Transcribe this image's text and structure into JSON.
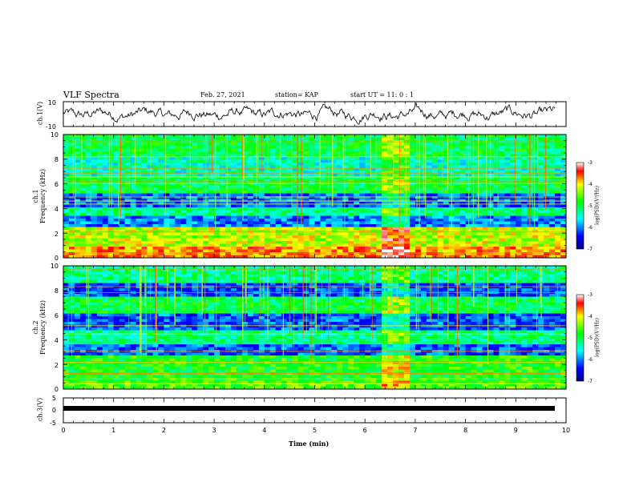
{
  "header": {
    "title": "VLF Spectra",
    "date": "Feb. 27, 2021",
    "station": "station= KAP",
    "start_ut": "start UT =  11: 0  : 1"
  },
  "chart_data": [
    {
      "id": "ch1-waveform",
      "type": "line",
      "ylabel": "ch.1(V)",
      "ylim": [
        -10,
        10
      ],
      "yticks": [
        "10",
        "-10"
      ],
      "xlim": [
        0,
        10
      ],
      "series": [
        {
          "values_desc": "noisy waveform around 0 V, amplitude ~5 V"
        }
      ]
    },
    {
      "id": "ch1-spectrogram",
      "type": "heatmap",
      "ylabel_line1": "ch.1",
      "ylabel_line2": "Frequency (kHz)",
      "ylim": [
        0,
        10
      ],
      "yticks": [
        "0",
        "2",
        "4",
        "6",
        "8",
        "10"
      ],
      "xlim": [
        0,
        10
      ],
      "colorbar": {
        "label": "log(PSD)(V²/Hz)",
        "ticks": [
          "-3",
          "-4",
          "-5",
          "-6",
          "-7"
        ],
        "range": [
          -7,
          -3
        ]
      }
    },
    {
      "id": "ch2-spectrogram",
      "type": "heatmap",
      "ylabel_line1": "ch.2",
      "ylabel_line2": "Frequency (kHz)",
      "ylim": [
        0,
        10
      ],
      "yticks": [
        "0",
        "2",
        "4",
        "6",
        "8",
        "10"
      ],
      "xlim": [
        0,
        10
      ],
      "colorbar": {
        "label": "log(PSD)(V²/Hz)",
        "ticks": [
          "-3",
          "-4",
          "-5",
          "-6",
          "-7"
        ],
        "range": [
          -7,
          -3
        ]
      }
    },
    {
      "id": "ch3-waveform",
      "type": "line",
      "ylabel": "ch.3(V)",
      "ylim": [
        -5,
        5
      ],
      "yticks": [
        "5",
        "0",
        "-5"
      ],
      "xlim": [
        0,
        10
      ],
      "xlabel": "Time (min)",
      "xticks": [
        "0",
        "1",
        "2",
        "3",
        "4",
        "5",
        "6",
        "7",
        "8",
        "9",
        "10"
      ],
      "series": [
        {
          "values_desc": "flat dense band at about -1 V"
        }
      ]
    }
  ]
}
